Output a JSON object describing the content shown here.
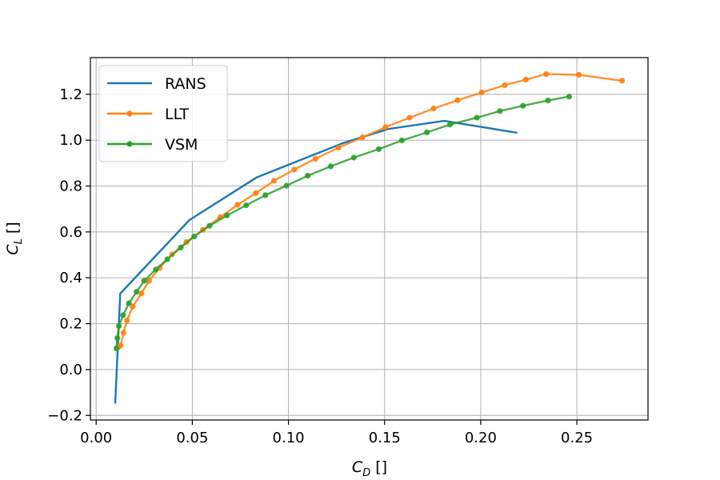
{
  "chart_data": {
    "type": "line",
    "xlabel": "C_D []",
    "ylabel": "C_L []",
    "xlim": [
      -0.003,
      0.287
    ],
    "ylim": [
      -0.22,
      1.36
    ],
    "xticks": [
      0.0,
      0.05,
      0.1,
      0.15,
      0.2,
      0.25
    ],
    "xtick_labels": [
      "0.00",
      "0.05",
      "0.10",
      "0.15",
      "0.20",
      "0.25"
    ],
    "yticks": [
      -0.2,
      0.0,
      0.2,
      0.4,
      0.6,
      0.8,
      1.0,
      1.2
    ],
    "ytick_labels": [
      "−0.2",
      "0.0",
      "0.2",
      "0.4",
      "0.6",
      "0.8",
      "1.0",
      "1.2"
    ],
    "grid": true,
    "legend_position": "top-left",
    "series": [
      {
        "name": "RANS",
        "color": "#1f77b4",
        "markers": false,
        "x": [
          0.0099,
          0.0125,
          0.0485,
          0.0835,
          0.128,
          0.152,
          0.181,
          0.219
        ],
        "y": [
          -0.148,
          0.331,
          0.652,
          0.838,
          0.986,
          1.049,
          1.084,
          1.032
        ]
      },
      {
        "name": "LLT",
        "color": "#ff7f0e",
        "markers": true,
        "x": [
          0.0114,
          0.0127,
          0.0142,
          0.016,
          0.019,
          0.0235,
          0.0275,
          0.033,
          0.0395,
          0.047,
          0.0555,
          0.0645,
          0.0735,
          0.083,
          0.0925,
          0.103,
          0.114,
          0.126,
          0.1385,
          0.1505,
          0.163,
          0.1755,
          0.188,
          0.2005,
          0.2125,
          0.2235,
          0.234,
          0.251,
          0.2735
        ],
        "y": [
          0.097,
          0.105,
          0.16,
          0.214,
          0.275,
          0.332,
          0.387,
          0.443,
          0.502,
          0.556,
          0.609,
          0.664,
          0.718,
          0.769,
          0.823,
          0.872,
          0.919,
          0.967,
          1.012,
          1.057,
          1.098,
          1.138,
          1.174,
          1.208,
          1.24,
          1.264,
          1.288,
          1.285,
          1.259
        ]
      },
      {
        "name": "VSM",
        "color": "#2ca02c",
        "markers": true,
        "x": [
          0.0105,
          0.011,
          0.0118,
          0.014,
          0.017,
          0.021,
          0.025,
          0.031,
          0.037,
          0.044,
          0.051,
          0.059,
          0.068,
          0.078,
          0.088,
          0.099,
          0.11,
          0.122,
          0.134,
          0.147,
          0.159,
          0.172,
          0.184,
          0.198,
          0.21,
          0.222,
          0.235,
          0.246
        ],
        "y": [
          0.092,
          0.137,
          0.19,
          0.237,
          0.289,
          0.339,
          0.387,
          0.436,
          0.481,
          0.532,
          0.58,
          0.627,
          0.672,
          0.716,
          0.76,
          0.802,
          0.845,
          0.886,
          0.924,
          0.961,
          0.999,
          1.034,
          1.068,
          1.098,
          1.127,
          1.15,
          1.173,
          1.19
        ]
      }
    ]
  }
}
